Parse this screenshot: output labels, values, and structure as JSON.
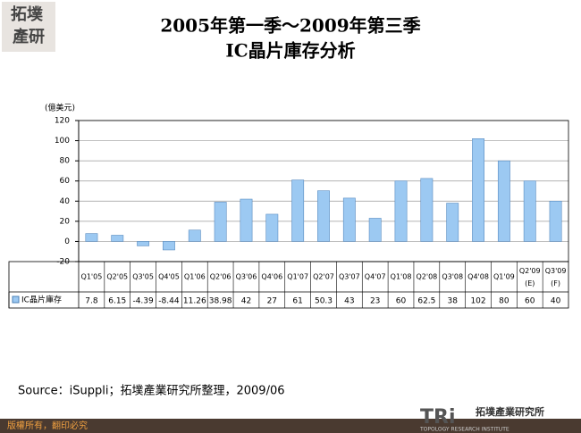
{
  "logo": {
    "corner_top": "拓墣",
    "corner_bottom": "產研",
    "name": "拓墣產業研究所",
    "brand": "TRi",
    "brand_sub": "TOPOLOGY RESEARCH INSTITUTE"
  },
  "chart_data": {
    "type": "bar",
    "title": "2005年第一季～2009年第三季",
    "subtitle": "IC晶片庫存分析",
    "y_label": "(億美元)",
    "categories": [
      "Q1'05",
      "Q2'05",
      "Q3'05",
      "Q4'05",
      "Q1'06",
      "Q2'06",
      "Q3'06",
      "Q4'06",
      "Q1'07",
      "Q2'07",
      "Q3'07",
      "Q4'07",
      "Q1'08",
      "Q2'08",
      "Q3'08",
      "Q4'08",
      "Q1'09",
      "Q2'09 (E)",
      "Q3'09 (F)"
    ],
    "series": [
      {
        "name": "IC晶片庫存",
        "color": "#9cc9f2",
        "values": [
          7.8,
          6.15,
          -4.39,
          -8.44,
          11.26,
          38.98,
          42,
          27,
          61,
          50.3,
          43,
          23,
          60,
          62.5,
          38,
          102,
          80,
          60,
          40
        ]
      }
    ],
    "ylim": [
      -20,
      120
    ],
    "yticks": [
      -20,
      0,
      20,
      40,
      60,
      80,
      100,
      120
    ],
    "grid": true,
    "source": "Source：iSuppli；拓墣產業研究所整理，2009/06"
  },
  "footer": "版權所有，翻印必究"
}
